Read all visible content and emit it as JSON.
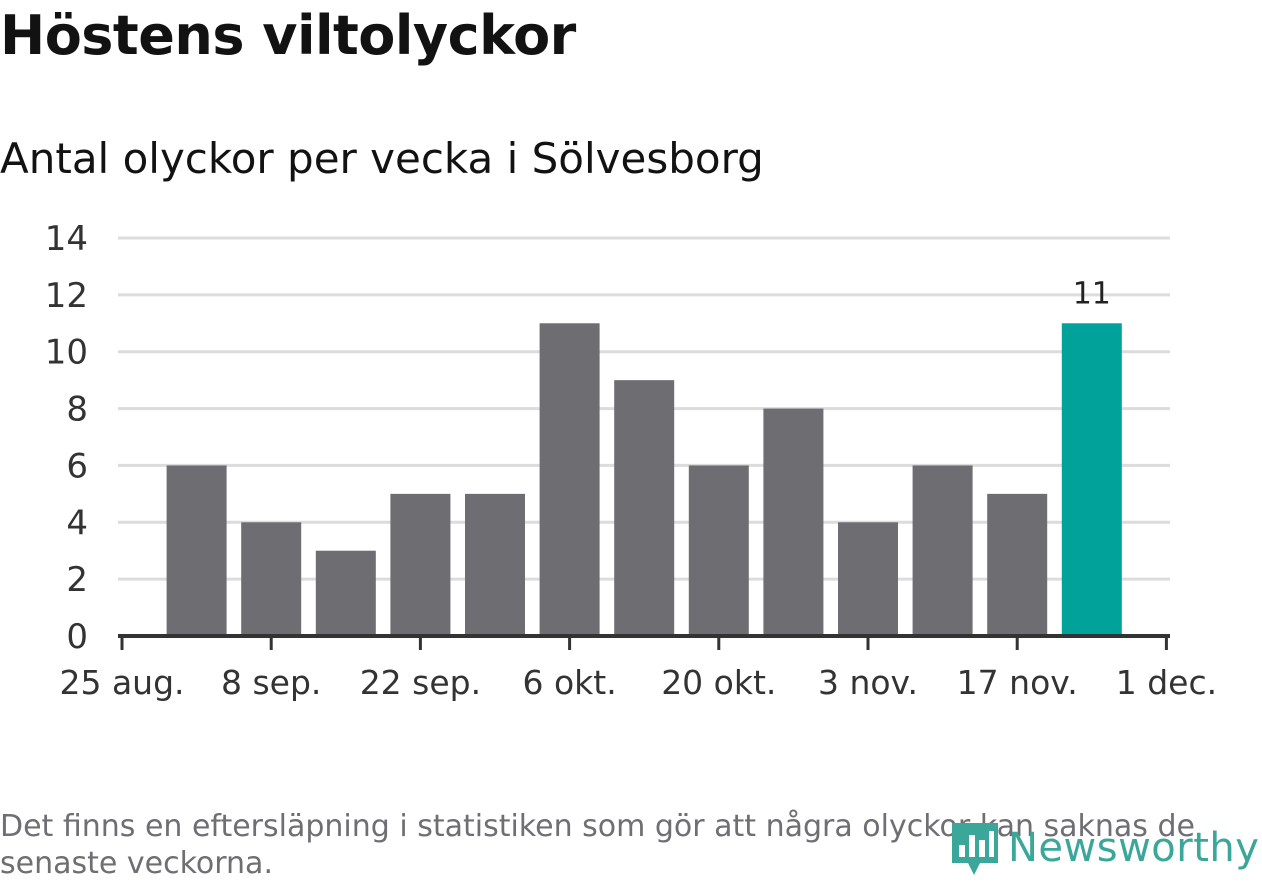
{
  "header": {
    "title": "Höstens viltolyckor",
    "subtitle": "Antal olyckor per vecka i Sölvesborg"
  },
  "chart_data": {
    "type": "bar",
    "title": "Höstens viltolyckor",
    "subtitle": "Antal olyckor per vecka i Sölvesborg",
    "xlabel": "",
    "ylabel": "",
    "ylim": [
      0,
      14
    ],
    "yticks": [
      0,
      2,
      4,
      6,
      8,
      10,
      12,
      14
    ],
    "x_axis_ticks": [
      "25 aug.",
      "8 sep.",
      "22 sep.",
      "6 okt.",
      "20 okt.",
      "3 nov.",
      "17 nov.",
      "1 dec."
    ],
    "bars": [
      {
        "week": 1,
        "value": 6
      },
      {
        "week": 2,
        "value": 4
      },
      {
        "week": 3,
        "value": 3
      },
      {
        "week": 4,
        "value": 5
      },
      {
        "week": 5,
        "value": 5
      },
      {
        "week": 6,
        "value": 11
      },
      {
        "week": 7,
        "value": 9
      },
      {
        "week": 8,
        "value": 6
      },
      {
        "week": 9,
        "value": 8
      },
      {
        "week": 10,
        "value": 4
      },
      {
        "week": 11,
        "value": 6
      },
      {
        "week": 12,
        "value": 5
      },
      {
        "week": 13,
        "value": 11,
        "highlight": true,
        "label": "11"
      }
    ],
    "grid": true,
    "colors": {
      "bar": "#6e6d72",
      "highlight": "#00a29a",
      "grid": "#dcdcdc",
      "axis": "#333333"
    }
  },
  "footnote": "Det finns en eftersläpning i statistiken som gör att några olyckor kan saknas de senaste veckorna.",
  "logo": {
    "text": "Newsworthy",
    "icon": "newsworthy-logo-icon",
    "color": "#3aa79a"
  }
}
